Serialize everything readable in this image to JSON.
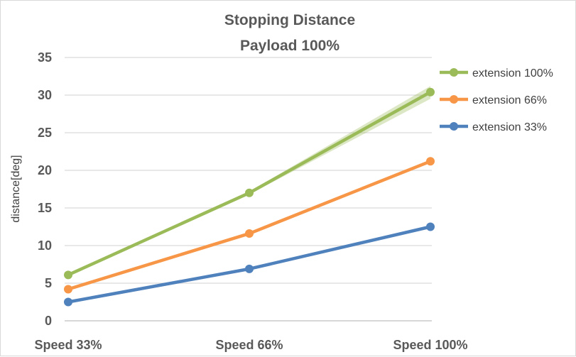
{
  "chart_data": {
    "type": "line",
    "title": "Stopping Distance",
    "subtitle": "Payload 100%",
    "xlabel": "",
    "ylabel": "distance[deg]",
    "categories": [
      "Speed 33%",
      "Speed 66%",
      "Speed 100%"
    ],
    "ylim": [
      0,
      35
    ],
    "yticks": [
      0,
      5,
      10,
      15,
      20,
      25,
      30,
      35
    ],
    "grid": true,
    "legend": "right",
    "series": [
      {
        "name": "extension 100%",
        "color": "#9BBB59",
        "values": [
          6.1,
          17.0,
          30.4
        ],
        "lower": [
          5.9,
          16.8,
          29.5
        ],
        "upper": [
          6.3,
          17.2,
          31.2
        ]
      },
      {
        "name": "extension 66%",
        "color": "#F79646",
        "values": [
          4.2,
          11.6,
          21.2
        ],
        "lower": [
          4.1,
          11.5,
          21.0
        ],
        "upper": [
          4.3,
          11.7,
          21.4
        ]
      },
      {
        "name": "extension 33%",
        "color": "#4F81BD",
        "values": [
          2.5,
          6.9,
          12.5
        ],
        "lower": [
          2.5,
          6.9,
          12.5
        ],
        "upper": [
          2.5,
          6.9,
          12.5
        ]
      }
    ]
  }
}
